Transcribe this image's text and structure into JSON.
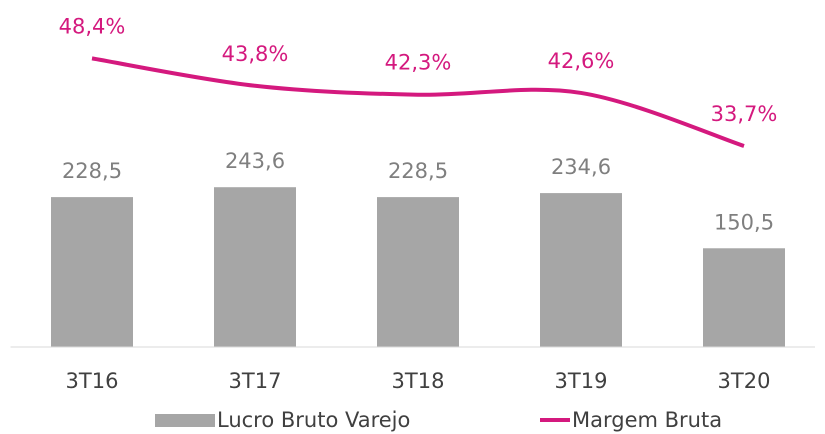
{
  "chart_data": {
    "type": "bar-line",
    "categories": [
      "3T16",
      "3T17",
      "3T18",
      "3T19",
      "3T20"
    ],
    "series": [
      {
        "name": "Lucro Bruto Varejo",
        "type": "bar",
        "color": "#a6a6a6",
        "values": [
          228.5,
          243.6,
          228.5,
          234.6,
          150.5
        ],
        "value_labels": [
          "228,5",
          "243,6",
          "228,5",
          "234,6",
          "150,5"
        ],
        "label_color": "#7f7f7f"
      },
      {
        "name": "Margem Bruta",
        "type": "line",
        "axis": "y2",
        "color": "#d4197e",
        "values": [
          48.4,
          43.8,
          42.3,
          42.6,
          33.7
        ],
        "value_labels": [
          "48,4%",
          "43,8%",
          "42,3%",
          "42,6%",
          "33,7%"
        ],
        "label_color": "#d4197e"
      }
    ],
    "ylim": [
      0,
      500
    ],
    "y2lim": [
      0,
      55
    ],
    "grid": false,
    "legend": "bottom"
  }
}
